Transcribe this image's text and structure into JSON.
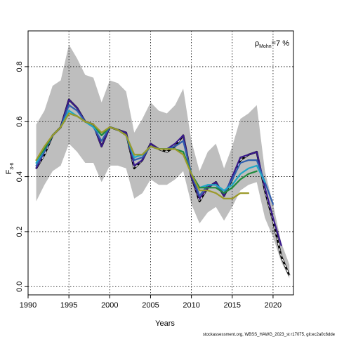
{
  "chart_data": {
    "type": "line",
    "xlabel": "Years",
    "ylabel": "F",
    "ylabel_sub": "3-6",
    "annotation": {
      "rho_symbol": "ρ",
      "rho_sub": "Mohn",
      "rho_value": "=7 %"
    },
    "footer": "stockassessment.org, WBSS_HAWG_2023_st r17075, git:ec2a0c6dde",
    "xlim": [
      1990,
      2022.5
    ],
    "ylim": [
      -0.03,
      0.93
    ],
    "x_ticks": [
      1990,
      1995,
      2000,
      2005,
      2010,
      2015,
      2020
    ],
    "y_ticks": [
      0.0,
      0.2,
      0.4,
      0.6,
      0.8
    ],
    "y_tick_labels": [
      "0.0",
      "0.2",
      "0.4",
      "0.6",
      "0.8"
    ],
    "grid": true,
    "band": {
      "x": [
        1991,
        1992,
        1993,
        1994,
        1995,
        1996,
        1997,
        1998,
        1999,
        2000,
        2001,
        2002,
        2003,
        2004,
        2005,
        2006,
        2007,
        2008,
        2009,
        2010,
        2011,
        2012,
        2013,
        2014,
        2015,
        2016,
        2017,
        2018,
        2019,
        2020,
        2021,
        2022
      ],
      "upper": [
        0.59,
        0.64,
        0.73,
        0.75,
        0.88,
        0.83,
        0.77,
        0.76,
        0.67,
        0.75,
        0.74,
        0.71,
        0.56,
        0.61,
        0.67,
        0.64,
        0.63,
        0.66,
        0.72,
        0.53,
        0.42,
        0.49,
        0.52,
        0.43,
        0.51,
        0.61,
        0.63,
        0.66,
        0.42,
        0.3,
        0.16,
        0.08
      ],
      "lower": [
        0.31,
        0.37,
        0.42,
        0.44,
        0.52,
        0.49,
        0.45,
        0.45,
        0.38,
        0.44,
        0.44,
        0.43,
        0.32,
        0.34,
        0.39,
        0.37,
        0.37,
        0.39,
        0.42,
        0.3,
        0.23,
        0.27,
        0.29,
        0.24,
        0.29,
        0.35,
        0.37,
        0.38,
        0.25,
        0.18,
        0.09,
        0.03
      ],
      "color": "#bebebe"
    },
    "series": [
      {
        "color": "#222222",
        "dash": true,
        "width": 2.2,
        "x": [
          1991,
          1992,
          1993,
          1994,
          1995,
          1996,
          1997,
          1998,
          1999,
          2000,
          2001,
          2002,
          2003,
          2004,
          2005,
          2006,
          2007,
          2008,
          2009,
          2010,
          2011,
          2012,
          2013,
          2014,
          2015,
          2016,
          2017,
          2018,
          2019,
          2020,
          2021,
          2022
        ],
        "values": [
          0.43,
          0.48,
          0.55,
          0.58,
          0.68,
          0.65,
          0.6,
          0.59,
          0.51,
          0.58,
          0.57,
          0.56,
          0.43,
          0.46,
          0.52,
          0.5,
          0.49,
          0.51,
          0.55,
          0.4,
          0.31,
          0.36,
          0.38,
          0.33,
          0.39,
          0.46,
          0.48,
          0.49,
          0.35,
          0.24,
          0.11,
          0.04
        ]
      },
      {
        "color": "#3a1a8c",
        "dash": false,
        "width": 2.2,
        "x": [
          1991,
          1992,
          1993,
          1994,
          1995,
          1996,
          1997,
          1998,
          1999,
          2000,
          2001,
          2002,
          2003,
          2004,
          2005,
          2006,
          2007,
          2008,
          2009,
          2010,
          2011,
          2012,
          2013,
          2014,
          2015,
          2016,
          2017,
          2018,
          2019,
          2020,
          2021
        ],
        "values": [
          0.43,
          0.49,
          0.55,
          0.58,
          0.68,
          0.65,
          0.6,
          0.59,
          0.51,
          0.58,
          0.57,
          0.56,
          0.44,
          0.46,
          0.52,
          0.5,
          0.5,
          0.52,
          0.55,
          0.4,
          0.32,
          0.36,
          0.38,
          0.33,
          0.4,
          0.47,
          0.48,
          0.49,
          0.36,
          0.25,
          0.15
        ]
      },
      {
        "color": "#2f5eae",
        "dash": false,
        "width": 2.2,
        "x": [
          1991,
          1992,
          1993,
          1994,
          1995,
          1996,
          1997,
          1998,
          1999,
          2000,
          2001,
          2002,
          2003,
          2004,
          2005,
          2006,
          2007,
          2008,
          2009,
          2010,
          2011,
          2012,
          2013,
          2014,
          2015,
          2016,
          2017,
          2018,
          2019,
          2020
        ],
        "values": [
          0.44,
          0.49,
          0.55,
          0.58,
          0.66,
          0.64,
          0.6,
          0.58,
          0.53,
          0.58,
          0.57,
          0.55,
          0.46,
          0.47,
          0.51,
          0.5,
          0.5,
          0.51,
          0.53,
          0.41,
          0.33,
          0.37,
          0.37,
          0.34,
          0.39,
          0.45,
          0.46,
          0.46,
          0.38,
          0.3
        ]
      },
      {
        "color": "#1fa8c6",
        "dash": false,
        "width": 2.2,
        "x": [
          1991,
          1992,
          1993,
          1994,
          1995,
          1996,
          1997,
          1998,
          1999,
          2000,
          2001,
          2002,
          2003,
          2004,
          2005,
          2006,
          2007,
          2008,
          2009,
          2010,
          2011,
          2012,
          2013,
          2014,
          2015,
          2016,
          2017,
          2018,
          2019
        ],
        "values": [
          0.45,
          0.5,
          0.55,
          0.58,
          0.64,
          0.62,
          0.6,
          0.58,
          0.55,
          0.58,
          0.57,
          0.55,
          0.47,
          0.48,
          0.51,
          0.5,
          0.5,
          0.5,
          0.49,
          0.41,
          0.36,
          0.37,
          0.37,
          0.35,
          0.37,
          0.41,
          0.43,
          0.44,
          0.38
        ]
      },
      {
        "color": "#1f8a3c",
        "dash": false,
        "width": 2.2,
        "x": [
          1991,
          1992,
          1993,
          1994,
          1995,
          1996,
          1997,
          1998,
          1999,
          2000,
          2001,
          2002,
          2003,
          2004,
          2005,
          2006,
          2007,
          2008,
          2009,
          2010,
          2011,
          2012,
          2013,
          2014,
          2015,
          2016,
          2017,
          2018
        ],
        "values": [
          0.46,
          0.5,
          0.55,
          0.58,
          0.63,
          0.62,
          0.6,
          0.59,
          0.55,
          0.58,
          0.57,
          0.55,
          0.48,
          0.48,
          0.51,
          0.5,
          0.5,
          0.5,
          0.49,
          0.41,
          0.36,
          0.36,
          0.36,
          0.34,
          0.36,
          0.39,
          0.41,
          0.42
        ]
      },
      {
        "color": "#9c9a2a",
        "dash": false,
        "width": 2.2,
        "x": [
          1991,
          1992,
          1993,
          1994,
          1995,
          1996,
          1997,
          1998,
          1999,
          2000,
          2001,
          2002,
          2003,
          2004,
          2005,
          2006,
          2007,
          2008,
          2009,
          2010,
          2011,
          2012,
          2013,
          2014,
          2015,
          2016,
          2017
        ],
        "values": [
          0.46,
          0.51,
          0.55,
          0.58,
          0.63,
          0.62,
          0.6,
          0.59,
          0.56,
          0.58,
          0.57,
          0.55,
          0.48,
          0.48,
          0.51,
          0.5,
          0.5,
          0.5,
          0.48,
          0.41,
          0.35,
          0.35,
          0.34,
          0.32,
          0.32,
          0.34,
          0.34
        ]
      }
    ]
  }
}
